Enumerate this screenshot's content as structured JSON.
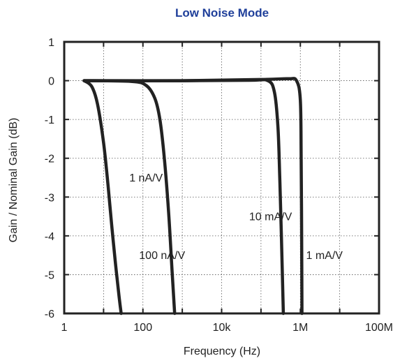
{
  "chart_data": {
    "type": "line",
    "title": "Low Noise Mode",
    "xlabel": "Frequency  (Hz)",
    "ylabel": "Gain / Nominal Gain  (dB)",
    "xscale": "log",
    "xlim": [
      1,
      100000000
    ],
    "ylim": [
      -6,
      1
    ],
    "grid": true,
    "x_ticks": [
      {
        "value": 1,
        "label": "1"
      },
      {
        "value": 100,
        "label": "100"
      },
      {
        "value": 10000,
        "label": "10k"
      },
      {
        "value": 1000000,
        "label": "1M"
      },
      {
        "value": 100000000,
        "label": "100M"
      }
    ],
    "x_minor_ticks": [
      10,
      1000,
      100000,
      10000000
    ],
    "y_ticks": [
      {
        "value": 1,
        "label": "1"
      },
      {
        "value": 0,
        "label": "0"
      },
      {
        "value": -1,
        "label": "-1"
      },
      {
        "value": -2,
        "label": "-2"
      },
      {
        "value": -3,
        "label": "-3"
      },
      {
        "value": -4,
        "label": "-4"
      },
      {
        "value": -5,
        "label": "-5"
      },
      {
        "value": -6,
        "label": "-6"
      }
    ],
    "series": [
      {
        "name": "1 nA/V",
        "x": [
          3.2,
          5,
          7,
          10,
          13,
          16,
          20,
          25,
          28
        ],
        "y": [
          0,
          -0.15,
          -0.6,
          -1.6,
          -2.7,
          -3.7,
          -4.7,
          -5.6,
          -6
        ]
      },
      {
        "name": "100 nA/V",
        "x": [
          3.2,
          50,
          120,
          200,
          270,
          350,
          450,
          550,
          640
        ],
        "y": [
          0,
          -0.02,
          -0.12,
          -0.45,
          -1.0,
          -2.0,
          -3.4,
          -4.9,
          -6
        ]
      },
      {
        "name": "10 mA/V",
        "x": [
          3.2,
          1000,
          50000,
          150000,
          220000,
          270000,
          300000,
          330000,
          370000
        ],
        "y": [
          0,
          0,
          0.01,
          0,
          -0.3,
          -1.2,
          -2.5,
          -4.0,
          -6
        ]
      },
      {
        "name": "1 mA/V",
        "x": [
          3.2,
          1000,
          100000,
          500000,
          800000,
          1000000,
          1050000,
          1080000,
          1100000
        ],
        "y": [
          0,
          0,
          0.03,
          0.05,
          0,
          -0.5,
          -2.0,
          -4.0,
          -6
        ]
      }
    ],
    "annotations": [
      {
        "text": "1 nA/V",
        "x": 45,
        "y": -2.6
      },
      {
        "text": "100 nA/V",
        "x": 80,
        "y": -4.6
      },
      {
        "text": "10 mA/V",
        "x": 50000,
        "y": -3.6
      },
      {
        "text": "1 mA/V",
        "x": 1400000,
        "y": -4.6
      }
    ]
  }
}
